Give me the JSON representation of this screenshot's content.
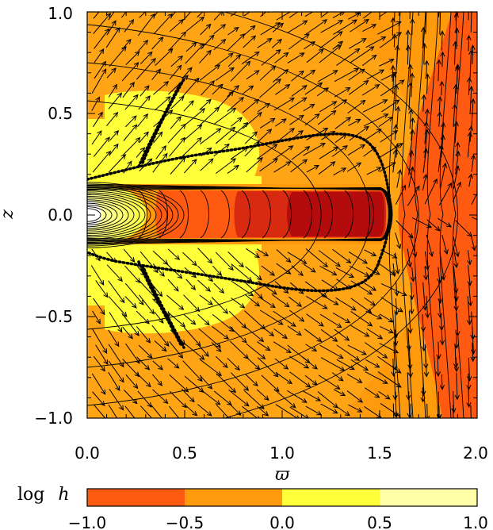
{
  "chart_data": {
    "type": "heatmap",
    "title": "",
    "xlabel": "ϖ",
    "ylabel": "z",
    "xlim": [
      0.0,
      2.0
    ],
    "ylim": [
      -1.0,
      1.0
    ],
    "x_ticks": [
      "0.0",
      "0.5",
      "1.0",
      "1.5",
      "2.0"
    ],
    "y_ticks": [
      "−1.0",
      "−0.5",
      "0.0",
      "0.5",
      "1.0"
    ],
    "colorbar": {
      "title": "log h",
      "title_prefix": "log",
      "title_var": "h",
      "range": [
        -1.0,
        1.0
      ],
      "ticks": [
        "−1.0",
        "−0.5",
        "0.0",
        "0.5",
        "1.0"
      ],
      "bins": [
        {
          "from": -1.0,
          "to": -0.5,
          "color": "#ff5a12"
        },
        {
          "from": -0.5,
          "to": 0.0,
          "color": "#ff9a0c"
        },
        {
          "from": 0.0,
          "to": 0.5,
          "color": "#ffff3a"
        },
        {
          "from": 0.5,
          "to": 1.0,
          "color": "#ffffaa"
        }
      ]
    },
    "extra_colors": {
      "disk_core": "#b40c0c",
      "disk_inner": "#d82a10",
      "background": "#ff9a0c"
    },
    "overlays": [
      "contour lines",
      "velocity vectors",
      "dotted boundary curve"
    ]
  }
}
